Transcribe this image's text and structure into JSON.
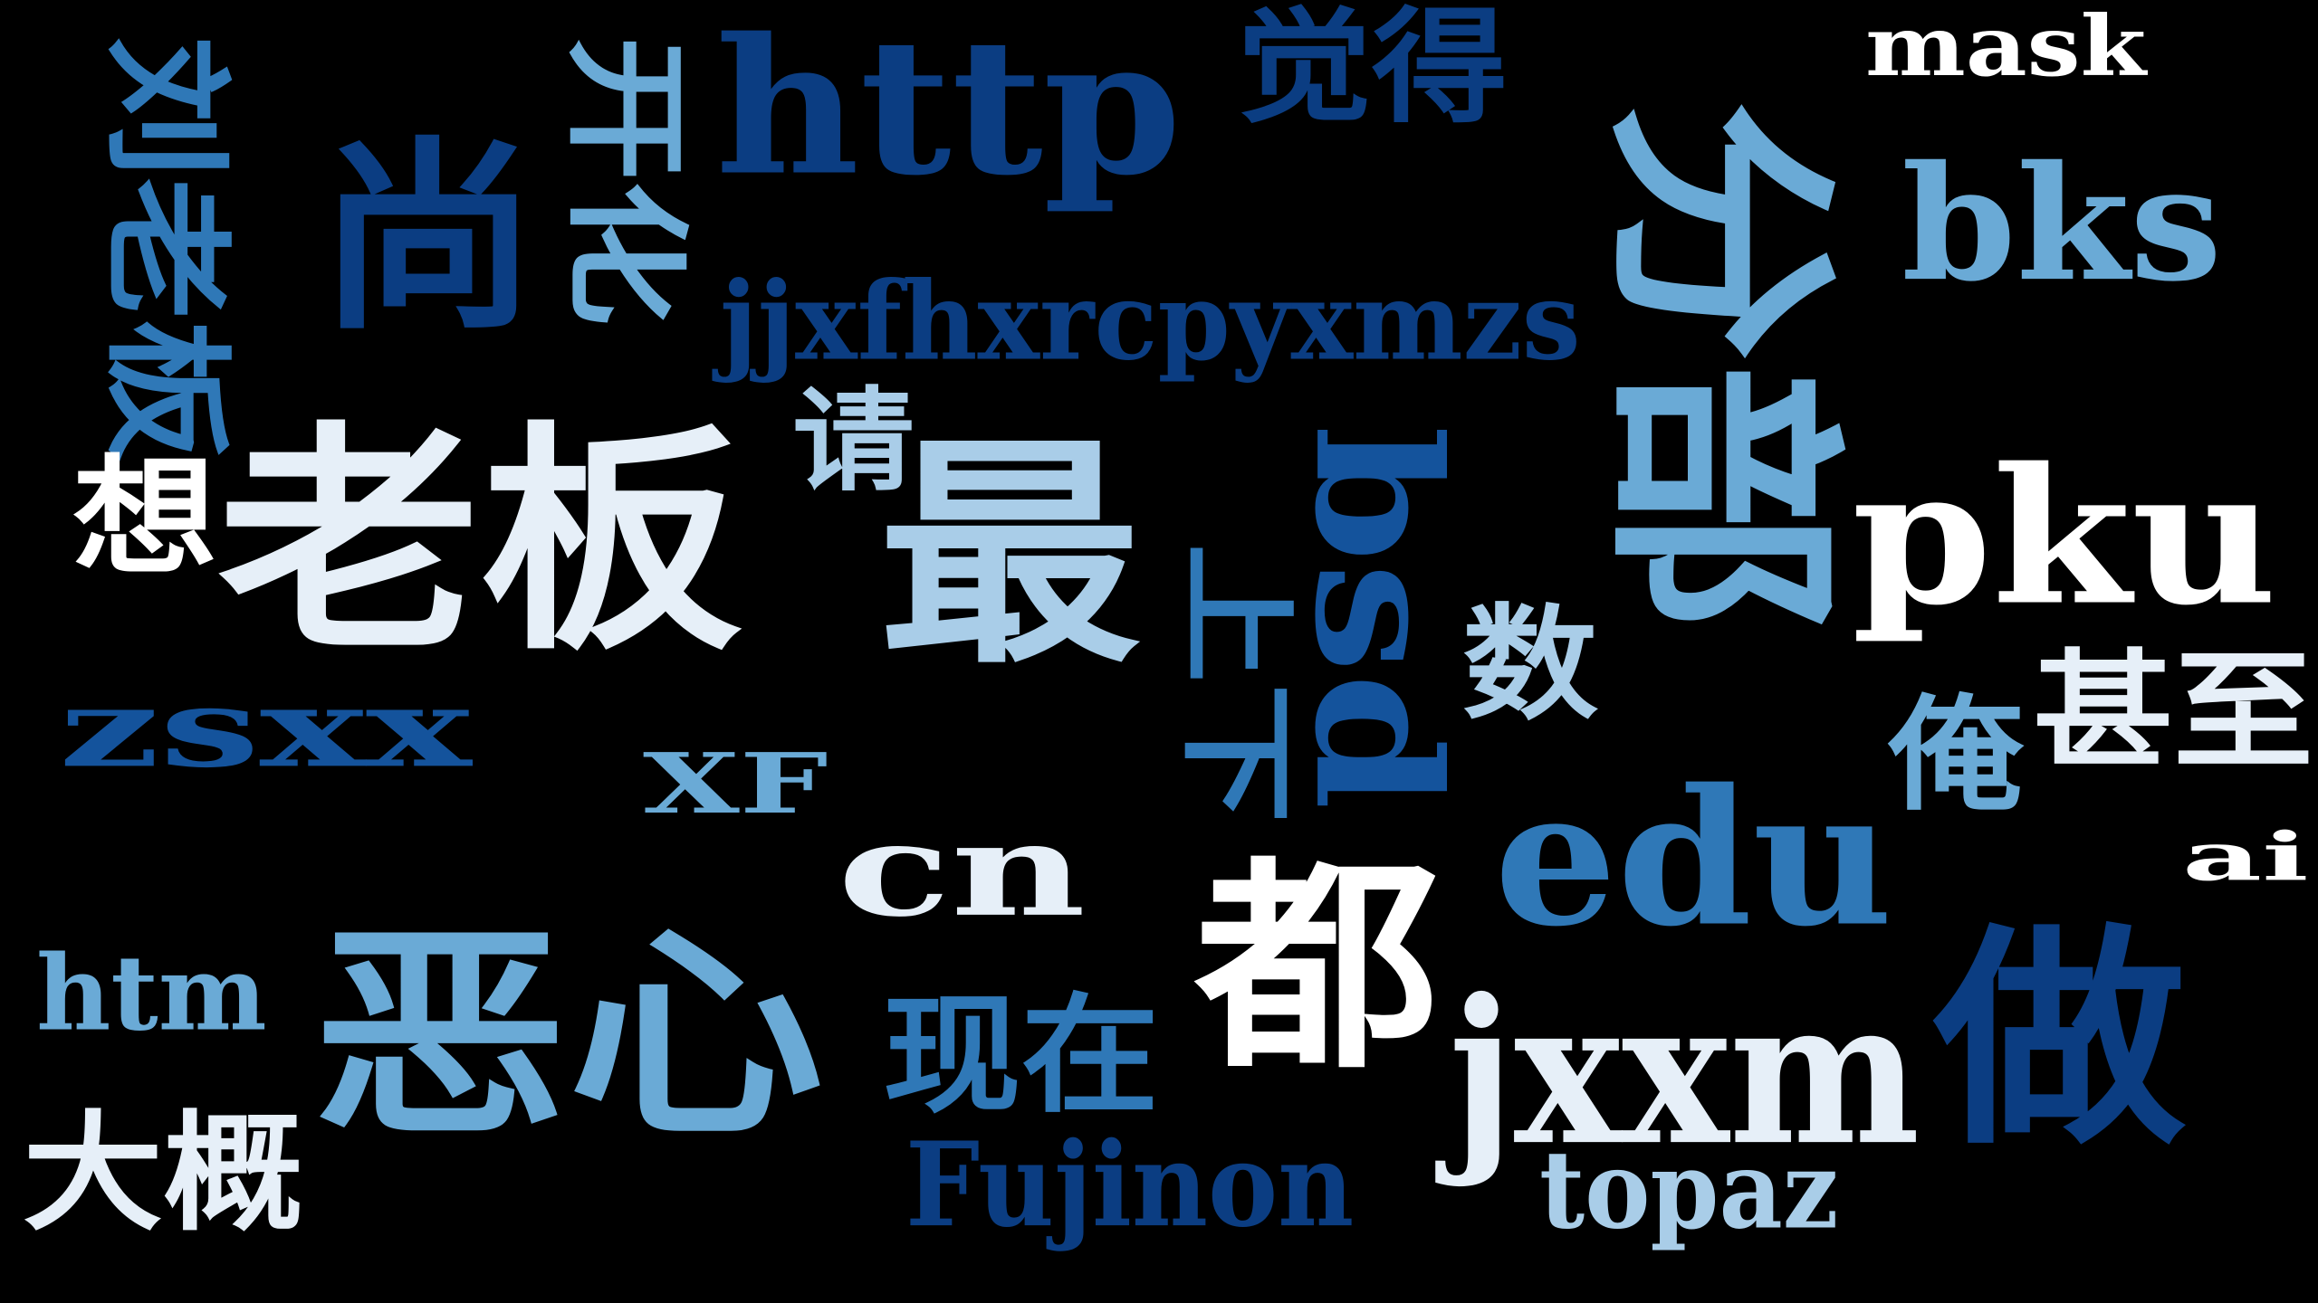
{
  "cloud": {
    "palette": {
      "darkest": "#0b3d82",
      "dark": "#14539c",
      "mid": "#2f78b7",
      "light": "#6aaad6",
      "lighter": "#a9cde8",
      "palest": "#e6eff8",
      "white": "#ffffff"
    },
    "words": [
      {
        "text": "刘老板",
        "color": "#2f78b7",
        "vertical": true
      },
      {
        "text": "尚",
        "color": "#0b3d82"
      },
      {
        "text": "开化",
        "color": "#6aaad6",
        "vertical": true
      },
      {
        "text": "http",
        "color": "#0b3d82"
      },
      {
        "text": "觉得",
        "color": "#0b3d82"
      },
      {
        "text": "mask",
        "color": "#ffffff"
      },
      {
        "text": "分",
        "color": "#6aaad6",
        "vertical": true
      },
      {
        "text": "bks",
        "color": "#6aaad6"
      },
      {
        "text": "jjxfhxrcpyxmzs",
        "color": "#0b3d82"
      },
      {
        "text": "请",
        "color": "#a9cde8"
      },
      {
        "text": "想",
        "color": "#ffffff"
      },
      {
        "text": "老板",
        "color": "#e6eff8"
      },
      {
        "text": "最",
        "color": "#a9cde8"
      },
      {
        "text": "bsd",
        "color": "#14539c",
        "vertical": true
      },
      {
        "text": "部",
        "color": "#6aaad6",
        "vertical": true
      },
      {
        "text": "pku",
        "color": "#ffffff"
      },
      {
        "text": "上下",
        "color": "#2f78b7",
        "vertical": true
      },
      {
        "text": "数",
        "color": "#a9cde8"
      },
      {
        "text": "zsxx",
        "color": "#14539c"
      },
      {
        "text": "俺",
        "color": "#6aaad6"
      },
      {
        "text": "甚至",
        "color": "#e6eff8"
      },
      {
        "text": "XF",
        "color": "#6aaad6"
      },
      {
        "text": "cn",
        "color": "#e6eff8"
      },
      {
        "text": "ai",
        "color": "#ffffff"
      },
      {
        "text": "edu",
        "color": "#2f78b7"
      },
      {
        "text": "都",
        "color": "#ffffff"
      },
      {
        "text": "htm",
        "color": "#6aaad6"
      },
      {
        "text": "恶心",
        "color": "#6aaad6"
      },
      {
        "text": "现在",
        "color": "#2f78b7"
      },
      {
        "text": "jxxm",
        "color": "#e6eff8"
      },
      {
        "text": "做",
        "color": "#0b3d82"
      },
      {
        "text": "大概",
        "color": "#e6eff8"
      },
      {
        "text": "Fujinon",
        "color": "#0b3d82"
      },
      {
        "text": "topaz",
        "color": "#a9cde8"
      }
    ]
  }
}
